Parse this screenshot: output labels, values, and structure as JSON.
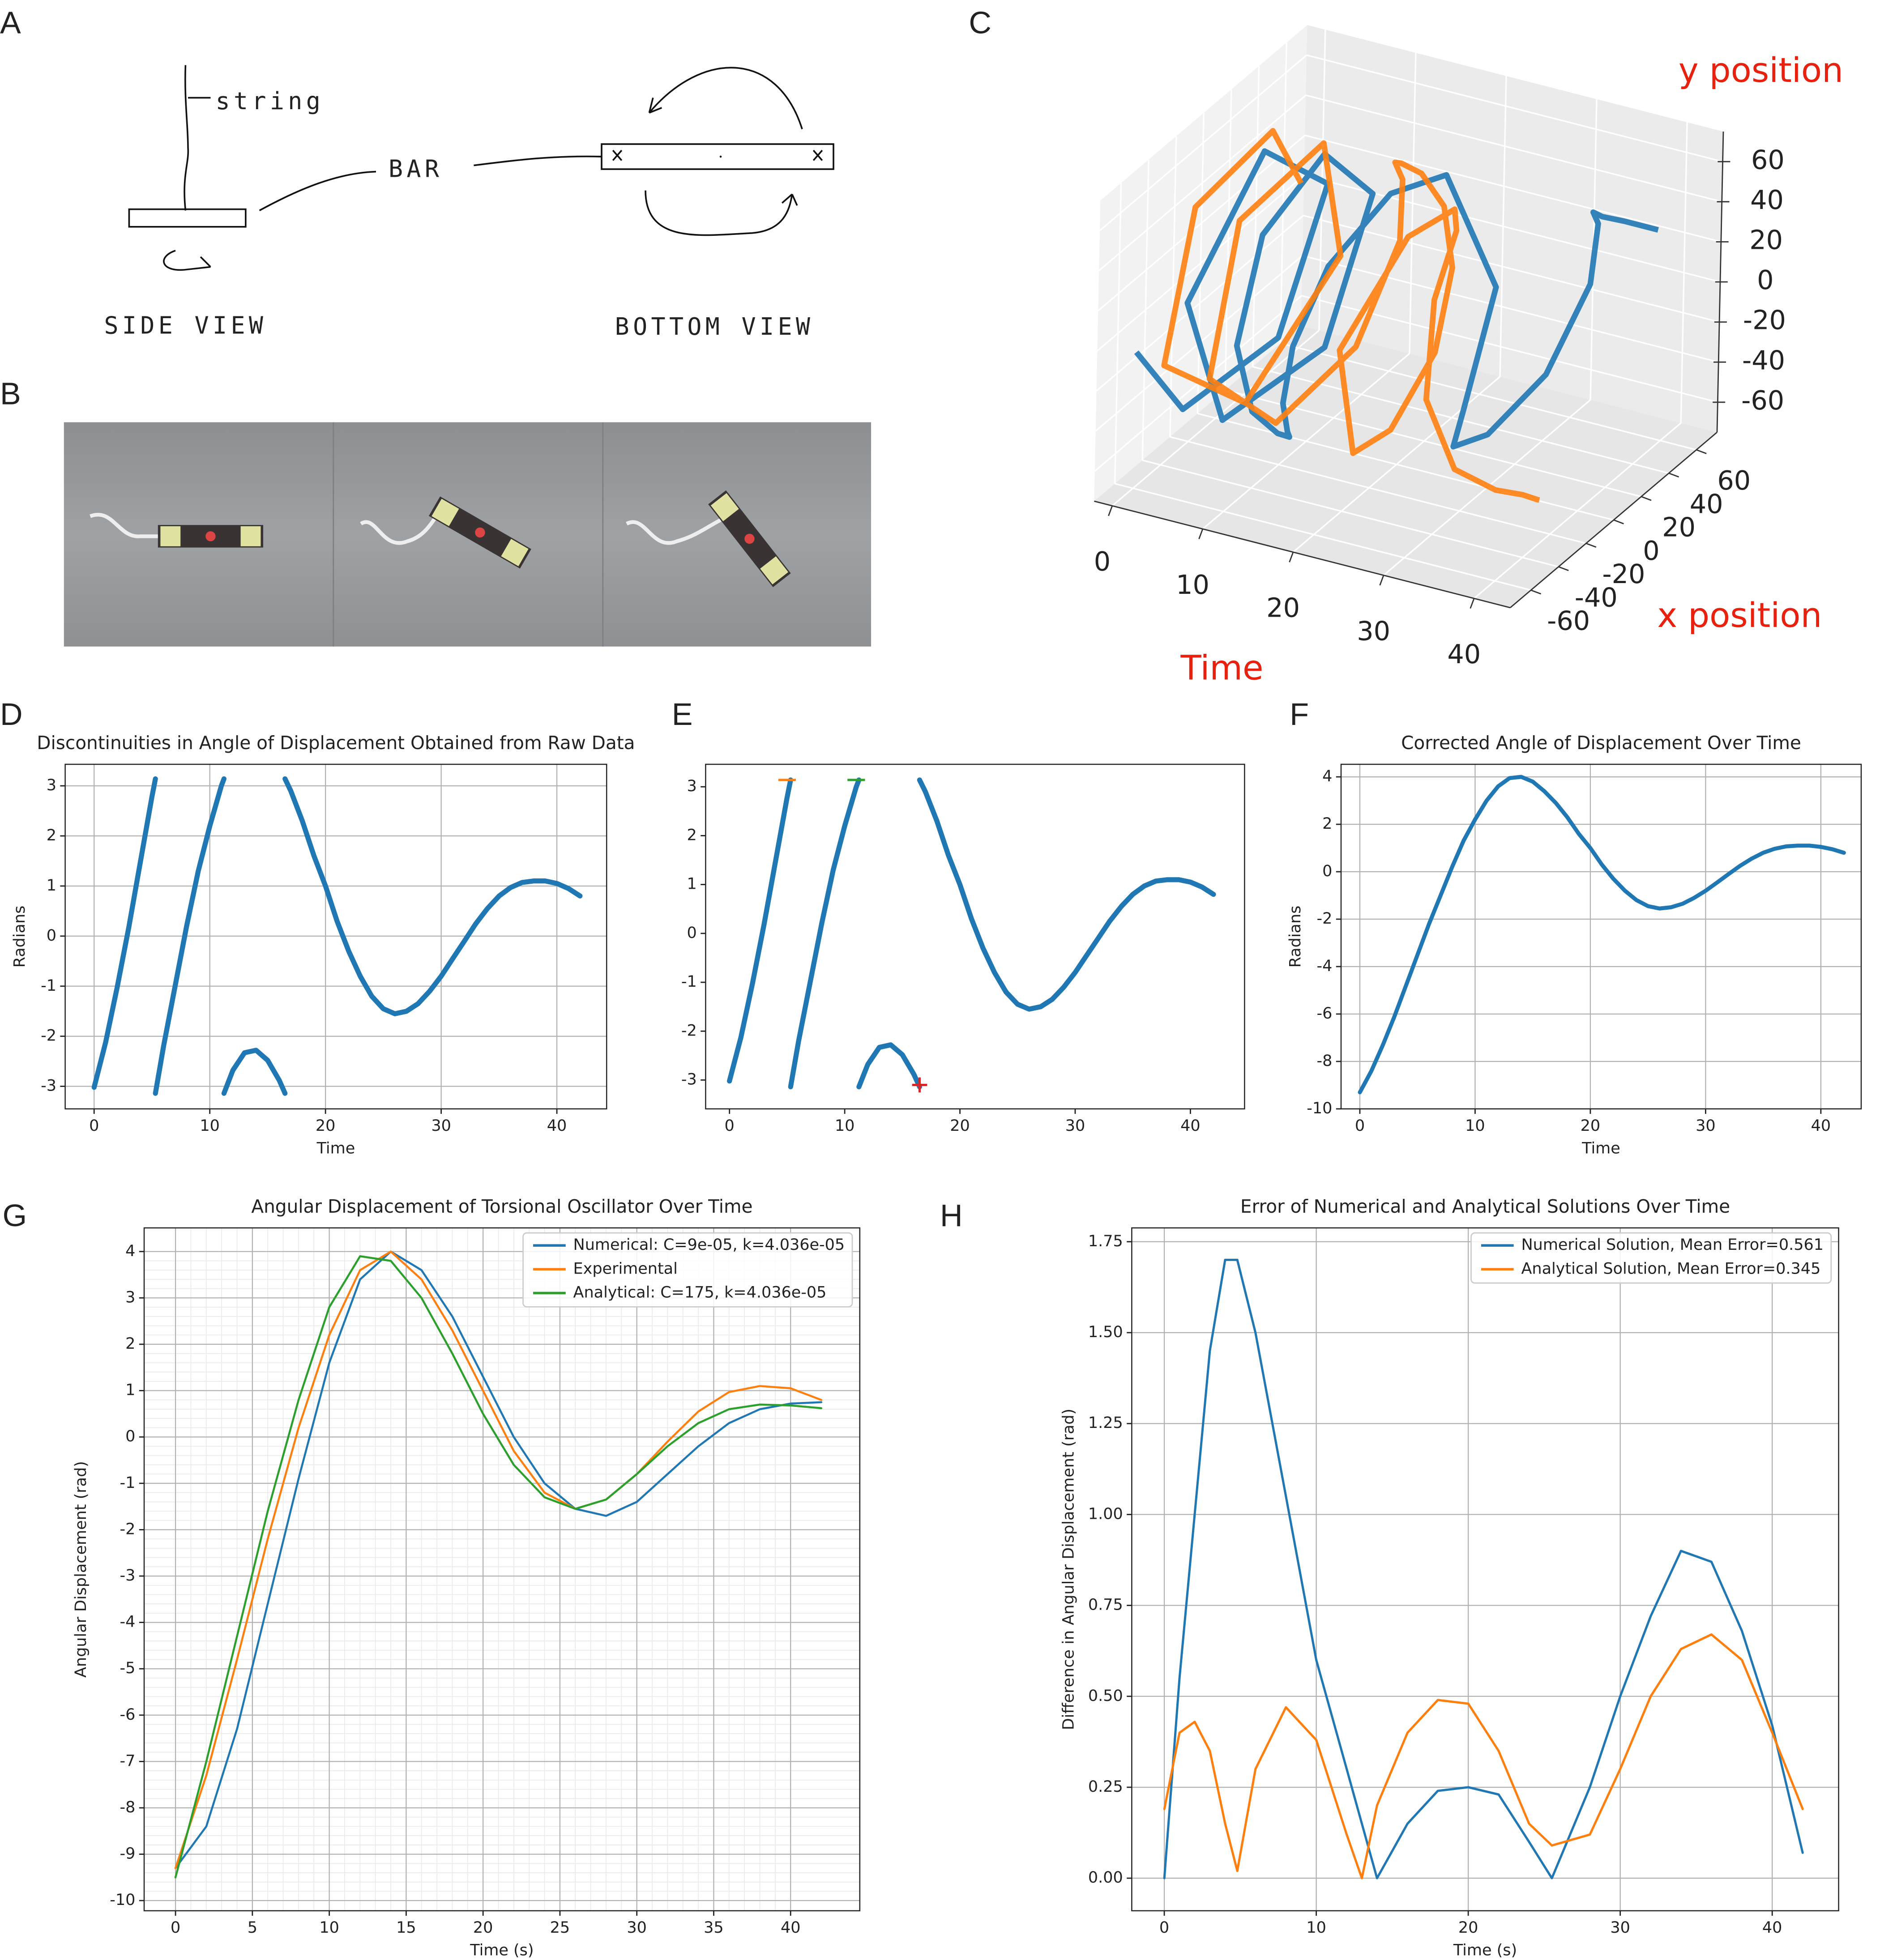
{
  "panel_labels": [
    "A",
    "B",
    "C",
    "D",
    "E",
    "F",
    "G",
    "H"
  ],
  "diagram": {
    "string_label": "string",
    "bar_label": "BAR",
    "side_view": "SIDE VIEW",
    "bottom_view": "BOTTOM VIEW"
  },
  "chart_data": [
    {
      "type": "line3d",
      "xlabel": "Time",
      "ylabel": "x position",
      "zlabel": "y position",
      "label_color": "#e8210f",
      "xlim": [
        -2,
        44
      ],
      "ylim": [
        -75,
        75
      ],
      "zlim": [
        -75,
        75
      ],
      "xticks": [
        0,
        10,
        20,
        30,
        40
      ],
      "yticks": [
        -60,
        -40,
        -20,
        0,
        20,
        40,
        60
      ],
      "zticks": [
        -60,
        -40,
        -20,
        0,
        20,
        40,
        60
      ],
      "grid": true,
      "series": [
        {
          "color": "#1f77b4",
          "x": [
            0,
            1,
            2,
            3,
            4,
            5,
            6,
            7,
            8,
            9,
            10,
            11,
            12,
            13,
            14,
            15,
            16,
            17,
            18,
            19,
            20,
            22,
            24,
            26,
            28,
            30,
            32,
            34,
            36,
            38,
            40,
            42
          ],
          "y": [
            -59.5,
            -31.1,
            31.6,
            59.0,
            5.2,
            -56.2,
            -35.3,
            32.4,
            58.8,
            16.0,
            -35.3,
            -59.4,
            -53.8,
            -41.3,
            -39.2,
            -47.5,
            -58.0,
            -58.3,
            -40.0,
            -1.8,
            32.4,
            57.3,
            21.7,
            1.3,
            13.1,
            41.8,
            59.7,
            51.2,
            33.9,
            27.2,
            29.9,
            41.8
          ],
          "z": [
            -7.4,
            -51.3,
            -51.0,
            10.9,
            59.8,
            21.0,
            -48.5,
            -50.5,
            11.9,
            57.8,
            48.5,
            8.5,
            -26.5,
            -43.5,
            -45.4,
            -36.7,
            -15.3,
            14.3,
            44.8,
            60.0,
            50.5,
            -17.7,
            -55.9,
            -60.0,
            -58.5,
            -43.0,
            -6.0,
            31.4,
            49.5,
            53.5,
            52.0,
            43.0
          ]
        },
        {
          "color": "#ff7f0e",
          "x": [
            0,
            1,
            2,
            3,
            4,
            5,
            6,
            7,
            8,
            9,
            10,
            11,
            12,
            13,
            14,
            15,
            16,
            17,
            18,
            19,
            20,
            22,
            24,
            26,
            28,
            30,
            32,
            34,
            36,
            38,
            40,
            42
          ],
          "y": [
            59.5,
            31.1,
            -31.6,
            -59.0,
            -5.2,
            56.2,
            35.3,
            -32.4,
            -58.8,
            -16.0,
            35.3,
            59.4,
            53.8,
            41.3,
            39.2,
            47.5,
            58.0,
            58.3,
            40.0,
            1.8,
            -32.4,
            -57.3,
            -21.7,
            -1.3,
            -13.1,
            -41.8,
            -59.7,
            -51.2,
            -33.9,
            -27.2,
            -29.9,
            -41.8
          ],
          "z": [
            7.4,
            51.3,
            51.0,
            -10.9,
            -59.8,
            -21.0,
            48.5,
            50.5,
            -11.9,
            -57.8,
            -48.5,
            -8.5,
            26.5,
            43.5,
            45.4,
            36.7,
            15.3,
            -14.3,
            -44.8,
            -60.0,
            -50.5,
            17.7,
            55.9,
            60.0,
            58.5,
            43.0,
            6.0,
            -31.4,
            -49.5,
            -53.5,
            -52.0,
            -43.0
          ]
        }
      ]
    },
    {
      "type": "line",
      "title": "Discontinuities in Angle of Displacement Obtained from Raw Data",
      "xlabel": "Time",
      "ylabel": "Radians",
      "xlim": [
        -2.5,
        44.3
      ],
      "ylim": [
        -3.45,
        3.43
      ],
      "xticks": [
        0,
        10,
        20,
        30,
        40
      ],
      "yticks": [
        -3,
        -2,
        -1,
        0,
        1,
        2,
        3
      ],
      "grid": true,
      "x": [
        0,
        1,
        2,
        3,
        4,
        5,
        5.3,
        5.3,
        5.3,
        6,
        7,
        8,
        9,
        10,
        11,
        11.23,
        11.23,
        11.23,
        12,
        13,
        14,
        15,
        16,
        16.5,
        16.5,
        16.5,
        17,
        18,
        19,
        20,
        21,
        22,
        23,
        24,
        25,
        26,
        27,
        28,
        29,
        30,
        31,
        32,
        33,
        34,
        35,
        36,
        37,
        38,
        39,
        40,
        41,
        42
      ],
      "series": [
        {
          "color": "#1f77b4",
          "values": [
            -3.02,
            -2.12,
            -1.02,
            0.18,
            1.48,
            2.78,
            3.14,
            null,
            -3.14,
            -2.2,
            -1.0,
            0.2,
            1.3,
            2.2,
            3.0,
            3.14,
            null,
            -3.14,
            -2.68,
            -2.33,
            -2.28,
            -2.48,
            -2.88,
            -3.14,
            null,
            3.14,
            2.9,
            2.3,
            1.6,
            1.0,
            0.3,
            -0.3,
            -0.8,
            -1.2,
            -1.45,
            -1.55,
            -1.5,
            -1.35,
            -1.1,
            -0.8,
            -0.45,
            -0.1,
            0.25,
            0.55,
            0.8,
            0.97,
            1.07,
            1.1,
            1.1,
            1.05,
            0.95,
            0.8
          ]
        }
      ]
    },
    {
      "type": "line",
      "xlim": [
        -2.07,
        44.7
      ],
      "ylim": [
        -3.59,
        3.46
      ],
      "xticks": [
        0,
        10,
        20,
        30,
        40
      ],
      "yticks": [
        -3,
        -2,
        -1,
        0,
        1,
        2,
        3
      ],
      "grid": false,
      "x": [
        0,
        1,
        2,
        3,
        4,
        5,
        5.3,
        5.3,
        5.3,
        6,
        7,
        8,
        9,
        10,
        11,
        11.23,
        11.23,
        11.23,
        12,
        13,
        14,
        15,
        16,
        16.5,
        16.5,
        16.5,
        17,
        18,
        19,
        20,
        21,
        22,
        23,
        24,
        25,
        26,
        27,
        28,
        29,
        30,
        31,
        32,
        33,
        34,
        35,
        36,
        37,
        38,
        39,
        40,
        41,
        42
      ],
      "series": [
        {
          "color": "#1f77b4",
          "values": [
            -3.02,
            -2.12,
            -1.02,
            0.18,
            1.48,
            2.78,
            3.14,
            null,
            -3.14,
            -2.2,
            -1.0,
            0.2,
            1.3,
            2.2,
            3.0,
            3.14,
            null,
            -3.14,
            -2.68,
            -2.33,
            -2.28,
            -2.48,
            -2.88,
            -3.14,
            null,
            3.14,
            2.9,
            2.3,
            1.6,
            1.0,
            0.3,
            -0.3,
            -0.8,
            -1.2,
            -1.45,
            -1.55,
            -1.5,
            -1.35,
            -1.1,
            -0.8,
            -0.45,
            -0.1,
            0.25,
            0.55,
            0.8,
            0.97,
            1.07,
            1.1,
            1.1,
            1.05,
            0.95,
            0.8
          ]
        }
      ],
      "markers": [
        {
          "x": 5,
          "y": 3.14,
          "color": "#ff7f0e",
          "symbol": "_"
        },
        {
          "x": 11,
          "y": 3.14,
          "color": "#2ca02c",
          "symbol": "_"
        },
        {
          "x": 16.5,
          "y": -3.1,
          "color": "#d62728",
          "symbol": "+"
        }
      ]
    },
    {
      "type": "line",
      "title": "Corrected Angle of Displacement Over Time",
      "xlabel": "Time",
      "ylabel": "Radians",
      "xlim": [
        -1.63,
        43.5
      ],
      "ylim": [
        -10,
        4.53
      ],
      "xticks": [
        0,
        10,
        20,
        30,
        40
      ],
      "yticks": [
        -10,
        -8,
        -6,
        -4,
        -2,
        0,
        2,
        4
      ],
      "grid": true,
      "x": [
        0,
        1,
        2,
        3,
        4,
        5,
        6,
        7,
        8,
        9,
        10,
        11,
        12,
        13,
        14,
        15,
        16,
        17,
        18,
        19,
        20,
        21,
        22,
        23,
        24,
        25,
        26,
        27,
        28,
        29,
        30,
        31,
        32,
        33,
        34,
        35,
        36,
        37,
        38,
        39,
        40,
        41,
        42
      ],
      "series": [
        {
          "color": "#1f77b4",
          "values": [
            -9.3,
            -8.4,
            -7.3,
            -6.1,
            -4.8,
            -3.5,
            -2.2,
            -1.0,
            0.2,
            1.3,
            2.2,
            3.0,
            3.6,
            3.95,
            4.0,
            3.8,
            3.4,
            2.9,
            2.3,
            1.6,
            1.0,
            0.3,
            -0.3,
            -0.8,
            -1.2,
            -1.45,
            -1.55,
            -1.5,
            -1.35,
            -1.1,
            -0.8,
            -0.45,
            -0.1,
            0.25,
            0.55,
            0.8,
            0.97,
            1.07,
            1.1,
            1.1,
            1.05,
            0.95,
            0.8
          ]
        }
      ]
    },
    {
      "type": "line",
      "title": "Angular Displacement of Torsional Oscillator Over Time",
      "xlabel": "Time (s)",
      "ylabel": "Angular Displacement (rad)",
      "xlim": [
        -2.04,
        44.5
      ],
      "ylim": [
        -10.22,
        4.51
      ],
      "xticks": [
        0,
        5,
        10,
        15,
        20,
        25,
        30,
        35,
        40
      ],
      "yticks": [
        -10,
        -9,
        -8,
        -7,
        -6,
        -5,
        -4,
        -3,
        -2,
        -1,
        0,
        1,
        2,
        3,
        4
      ],
      "grid": true,
      "minor_grid": true,
      "legend": "upper right",
      "x": [
        0,
        2,
        4,
        6,
        8,
        10,
        12,
        14,
        16,
        18,
        20,
        22,
        24,
        26,
        28,
        30,
        32,
        34,
        36,
        38,
        40,
        42
      ],
      "series": [
        {
          "name": "Numerical: C=9e-05, k=4.036e-05",
          "color": "#1f77b4",
          "values": [
            -9.3,
            -8.4,
            -6.3,
            -3.6,
            -0.9,
            1.6,
            3.4,
            4.0,
            3.6,
            2.6,
            1.3,
            0.0,
            -1.0,
            -1.55,
            -1.7,
            -1.4,
            -0.8,
            -0.2,
            0.3,
            0.6,
            0.72,
            0.75
          ]
        },
        {
          "name": "Experimental",
          "color": "#ff7f0e",
          "values": [
            -9.3,
            -7.3,
            -4.8,
            -2.2,
            0.2,
            2.2,
            3.6,
            4.0,
            3.4,
            2.3,
            1.0,
            -0.3,
            -1.2,
            -1.55,
            -1.35,
            -0.8,
            -0.1,
            0.55,
            0.97,
            1.1,
            1.05,
            0.8
          ]
        },
        {
          "name": "Analytical: C=175, k=4.036e-05",
          "color": "#2ca02c",
          "values": [
            -9.5,
            -7.0,
            -4.3,
            -1.6,
            0.8,
            2.8,
            3.9,
            3.8,
            3.0,
            1.8,
            0.5,
            -0.6,
            -1.3,
            -1.55,
            -1.35,
            -0.8,
            -0.2,
            0.3,
            0.6,
            0.7,
            0.68,
            0.62
          ]
        }
      ]
    },
    {
      "type": "line",
      "title": "Error of Numerical and Analytical Solutions Over Time",
      "xlabel": "Time (s)",
      "ylabel": "Difference in Angular Displacement (rad)",
      "xlim": [
        -2.14,
        44.37
      ],
      "ylim": [
        -0.0896,
        1.788
      ],
      "xticks": [
        0,
        10,
        20,
        30,
        40
      ],
      "yticks": [
        {
          "value": 0,
          "label": "0.00"
        },
        0.25,
        {
          "value": 0.5,
          "label": "0.50"
        },
        0.75,
        {
          "value": 1,
          "label": "1.00"
        },
        1.25,
        {
          "value": 1.5,
          "label": "1.50"
        },
        1.75
      ],
      "grid": true,
      "legend": "upper right",
      "x": [
        0,
        1,
        2,
        3,
        4,
        4.8,
        6,
        8,
        10,
        12,
        13,
        14,
        16,
        18,
        20,
        22,
        24,
        25.5,
        28,
        30,
        32,
        34,
        36,
        38,
        40,
        42
      ],
      "series": [
        {
          "name": "Numerical Solution, Mean Error=0.561",
          "color": "#1f77b4",
          "values": [
            0.0,
            0.55,
            1.0,
            1.45,
            1.7,
            1.7,
            1.5,
            1.05,
            0.6,
            0.3,
            0.15,
            0.0,
            0.15,
            0.24,
            0.25,
            0.23,
            0.1,
            0.0,
            0.25,
            0.5,
            0.72,
            0.9,
            0.87,
            0.68,
            0.42,
            0.07
          ]
        },
        {
          "name": "Analytical Solution, Mean Error=0.345",
          "color": "#ff7f0e",
          "values": [
            0.19,
            0.4,
            0.43,
            0.35,
            0.15,
            0.02,
            0.3,
            0.47,
            0.38,
            0.12,
            0.0,
            0.2,
            0.4,
            0.49,
            0.48,
            0.35,
            0.15,
            0.09,
            0.12,
            0.3,
            0.5,
            0.63,
            0.67,
            0.6,
            0.4,
            0.19
          ]
        }
      ]
    }
  ]
}
